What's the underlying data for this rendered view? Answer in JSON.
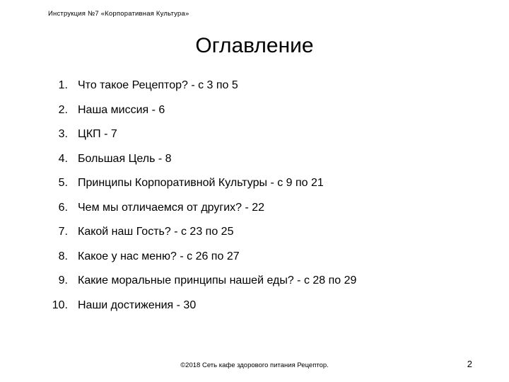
{
  "header": "Инструкция №7 «Корпоративная Культура»",
  "title": "Оглавление",
  "toc": [
    {
      "num": "1.",
      "text": "Что такое Рецептор? - с 3 по 5"
    },
    {
      "num": "2.",
      "text": "Наша миссия - 6"
    },
    {
      "num": "3.",
      "text": "ЦКП - 7"
    },
    {
      "num": "4.",
      "text": "Большая Цель - 8"
    },
    {
      "num": "5.",
      "text": "Принципы Корпоративной Культуры - с 9 по 21"
    },
    {
      "num": "6.",
      "text": "Чем мы отличаемся от других? - 22"
    },
    {
      "num": "7.",
      "text": "Какой наш Гость? - с 23 по 25"
    },
    {
      "num": "8.",
      "text": "Какое у нас меню? - с 26 по 27"
    },
    {
      "num": "9.",
      "text": "Какие моральные принципы нашей еды? - с 28 по 29"
    },
    {
      "num": "10.",
      "text": "Наши достижения - 30"
    }
  ],
  "footer": "©2018 Сеть кафе здорового питания Рецептор.",
  "page_number": "2",
  "styling": {
    "background_color": "#ffffff",
    "text_color": "#000000",
    "header_fontsize": 9.5,
    "title_fontsize": 30,
    "toc_fontsize": 16,
    "footer_fontsize": 9.5,
    "page_number_fontsize": 13,
    "toc_line_spacing": 16.5
  }
}
